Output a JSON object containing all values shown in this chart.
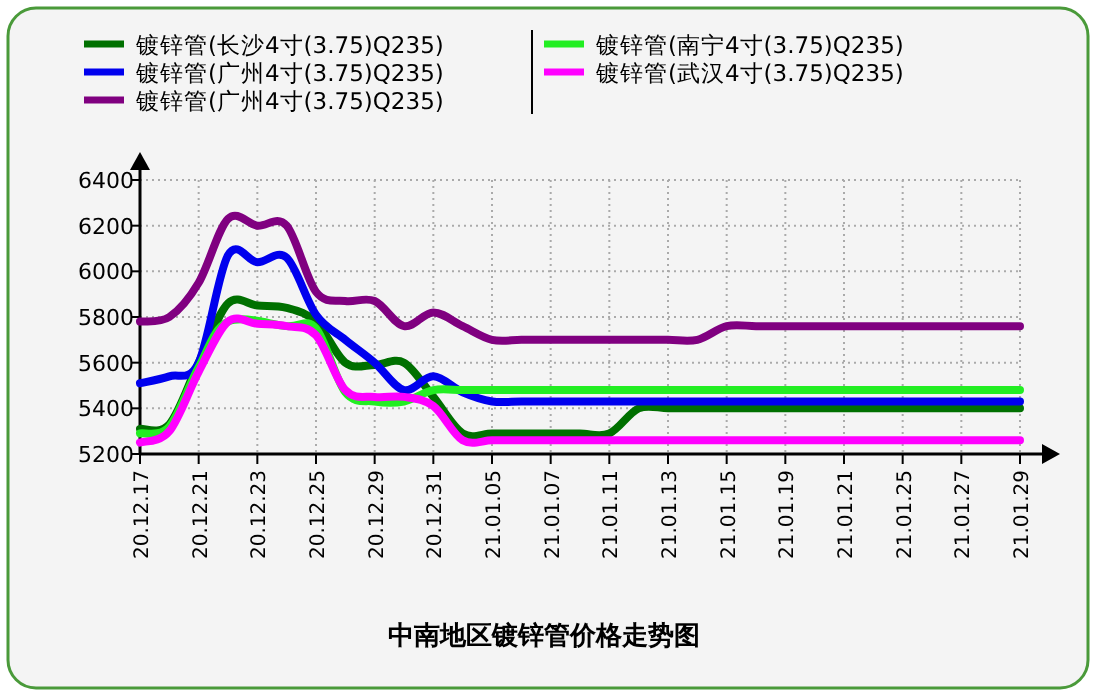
{
  "chart_data": {
    "type": "line",
    "title": "中南地区镀锌管价格走势图",
    "categories": [
      "20.12.17",
      null,
      "20.12.21",
      null,
      "20.12.23",
      null,
      "20.12.25",
      null,
      "20.12.29",
      null,
      "20.12.31",
      null,
      "21.01.05",
      null,
      "21.01.07",
      null,
      "21.01.11",
      null,
      "21.01.13",
      null,
      "21.01.15",
      null,
      "21.01.19",
      null,
      "21.01.21",
      null,
      "21.01.25",
      null,
      "21.01.27",
      null,
      "21.01.29"
    ],
    "series": [
      {
        "name": "镀锌管(长沙4寸(3.75)Q235)",
        "color": "#007000",
        "values": [
          5310,
          5330,
          5600,
          5860,
          5850,
          5840,
          5780,
          5600,
          5590,
          5600,
          5450,
          5290,
          5290,
          5290,
          5290,
          5290,
          5290,
          5400,
          5400,
          5400,
          5400,
          5400,
          5400,
          5400,
          5400,
          5400,
          5400,
          5400,
          5400,
          5400,
          5400
        ]
      },
      {
        "name": "镀锌管(广州4寸(3.75)Q235)",
        "color": "#0000ee",
        "values": [
          5510,
          5540,
          5600,
          6070,
          6040,
          6060,
          5810,
          5700,
          5600,
          5480,
          5540,
          5470,
          5430,
          5430,
          5430,
          5430,
          5430,
          5430,
          5430,
          5430,
          5430,
          5430,
          5430,
          5430,
          5430,
          5430,
          5430,
          5430,
          5430,
          5430,
          5430
        ]
      },
      {
        "name": "镀锌管(广州4寸(3.75)Q235)",
        "color": "#800080",
        "values": [
          5780,
          5800,
          5950,
          6230,
          6200,
          6200,
          5910,
          5870,
          5870,
          5760,
          5820,
          5760,
          5700,
          5700,
          5700,
          5700,
          5700,
          5700,
          5700,
          5700,
          5760,
          5760,
          5760,
          5760,
          5760,
          5760,
          5760,
          5760,
          5760,
          5760,
          5760
        ]
      },
      {
        "name": "镀锌管(南宁4寸(3.75)Q235)",
        "color": "#22ee22",
        "values": [
          5290,
          5320,
          5580,
          5780,
          null,
          5760,
          5750,
          5470,
          5430,
          5430,
          5480,
          5480,
          5480,
          5480,
          5480,
          5480,
          5480,
          5480,
          5480,
          5480,
          5480,
          5480,
          5480,
          5480,
          5480,
          5480,
          5480,
          5480,
          5480,
          5480,
          5480
        ]
      },
      {
        "name": "镀锌管(武汉4寸(3.75)Q235)",
        "color": "#ff00ff",
        "values": [
          5250,
          5300,
          5560,
          5780,
          5770,
          5760,
          5720,
          5480,
          5450,
          5450,
          5410,
          5260,
          5260,
          5260,
          5260,
          5260,
          5260,
          5260,
          5260,
          5260,
          5260,
          5260,
          5260,
          5260,
          5260,
          5260,
          5260,
          5260,
          5260,
          5260,
          5260
        ]
      }
    ],
    "ylim": [
      5200,
      6400
    ],
    "yticks": [
      5200,
      5400,
      5600,
      5800,
      6000,
      6200,
      6400
    ],
    "grid": true,
    "legend": "top"
  }
}
